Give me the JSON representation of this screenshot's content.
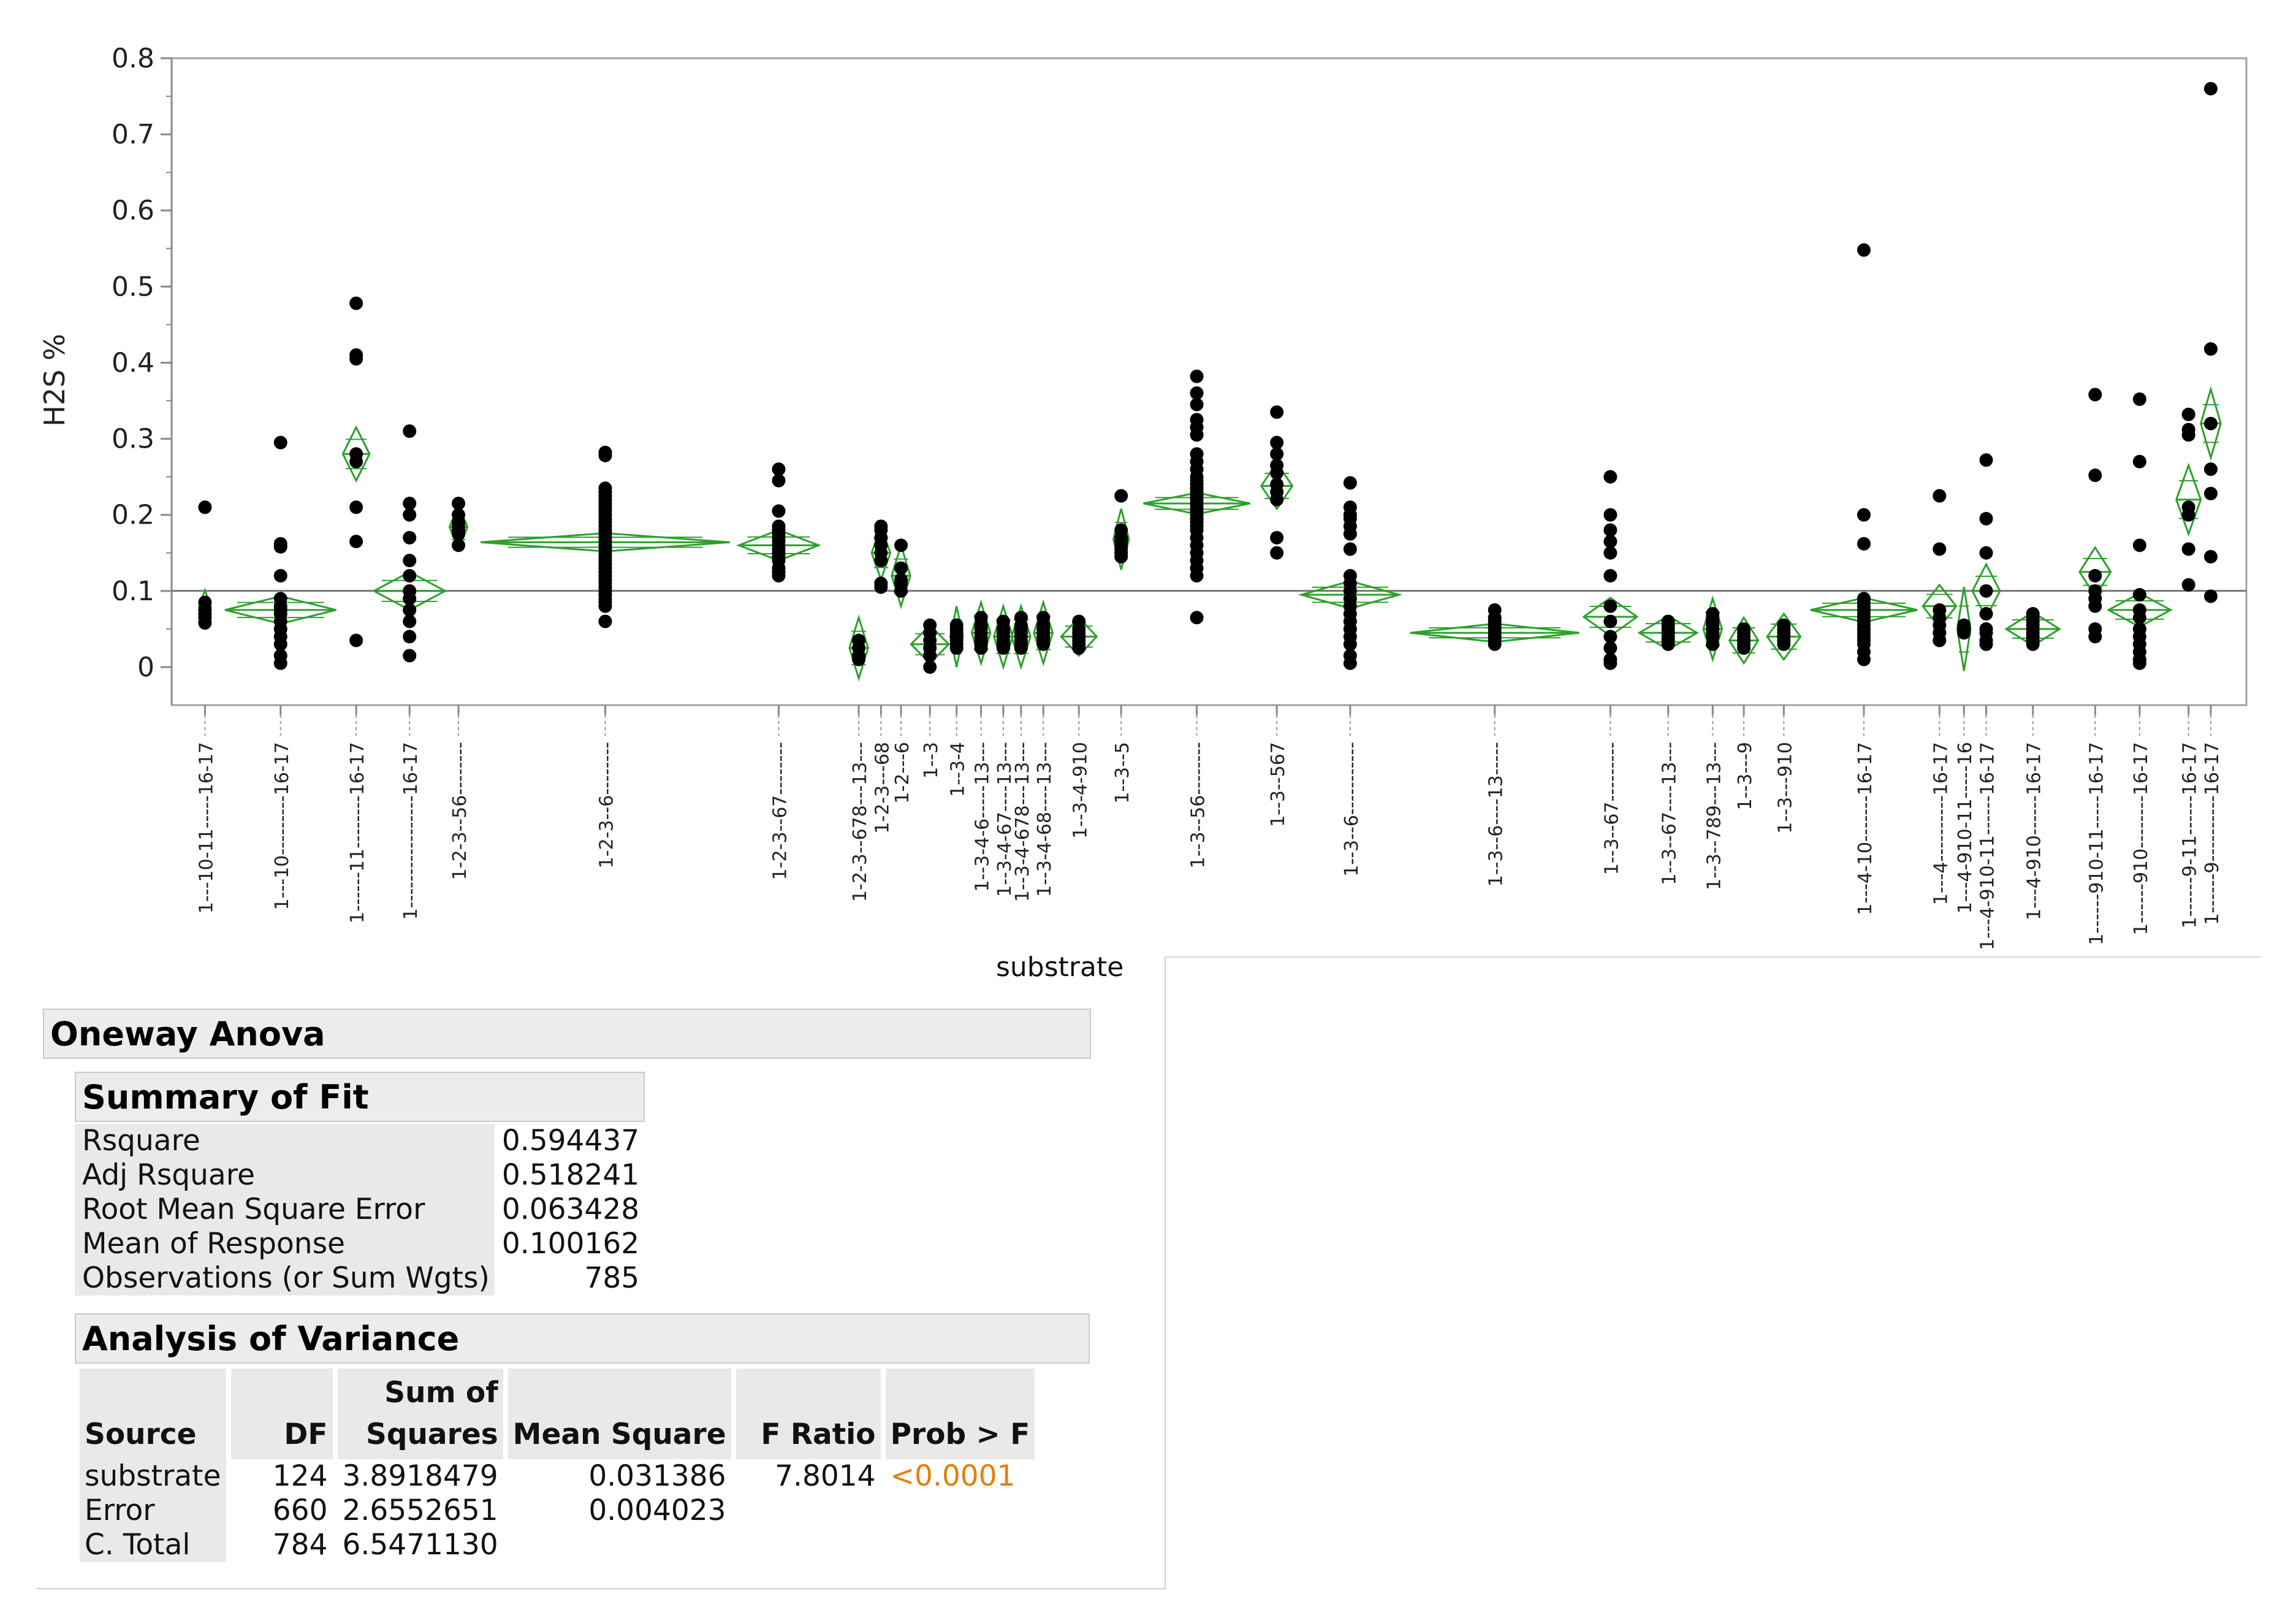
{
  "chart_data": {
    "type": "scatter",
    "subtype": "oneway-means-diamonds",
    "title": "",
    "xlabel": "substrate",
    "ylabel": "H2S %",
    "ylim": [
      -0.05,
      0.8
    ],
    "yticks": [
      0,
      0.1,
      0.2,
      0.3,
      0.4,
      0.5,
      0.6,
      0.7,
      0.8
    ],
    "ytick_labels": [
      "0",
      "0.1",
      "0.2",
      "0.3",
      "0.4",
      "0.5",
      "0.6",
      "0.7",
      "0.8"
    ],
    "grand_mean": 0.100162,
    "grid": false,
    "colors": {
      "diamond": "#2ca02c",
      "point": "#000000",
      "axis": "#888888",
      "grand_mean_line": "#777777"
    },
    "groups": [
      {
        "label": "1---10-11-----16-17",
        "xc": 0.0,
        "w": 0.04,
        "mean": 0.079,
        "hh": 0.022,
        "pts": [
          0.21,
          0.085,
          0.075,
          0.07,
          0.065,
          0.058
        ]
      },
      {
        "label": "1---10---------16-17",
        "xc": 1.7,
        "w": 2.5,
        "mean": 0.075,
        "hh": 0.018,
        "pts": [
          0.295,
          0.162,
          0.158,
          0.12,
          0.09,
          0.08,
          0.075,
          0.07,
          0.06,
          0.05,
          0.04,
          0.03,
          0.015,
          0.005
        ]
      },
      {
        "label": "1------11--------16-17",
        "xc": 3.4,
        "w": 0.6,
        "mean": 0.28,
        "hh": 0.035,
        "pts": [
          0.478,
          0.41,
          0.405,
          0.28,
          0.27,
          0.21,
          0.165,
          0.035
        ]
      },
      {
        "label": "1-----------------16-17",
        "xc": 4.6,
        "w": 1.6,
        "mean": 0.1,
        "hh": 0.025,
        "pts": [
          0.31,
          0.215,
          0.2,
          0.17,
          0.14,
          0.12,
          0.1,
          0.09,
          0.075,
          0.06,
          0.04,
          0.015
        ]
      },
      {
        "label": "1-2-3--56--------",
        "xc": 5.7,
        "w": 0.4,
        "mean": 0.184,
        "hh": 0.03,
        "pts": [
          0.215,
          0.2,
          0.19,
          0.185,
          0.18,
          0.175,
          0.16
        ]
      },
      {
        "label": "1-2-3--6--------",
        "xc": 9.0,
        "w": 5.6,
        "mean": 0.164,
        "hh": 0.012,
        "pts": [
          0.282,
          0.278,
          0.235,
          0.23,
          0.225,
          0.22,
          0.215,
          0.21,
          0.205,
          0.2,
          0.195,
          0.19,
          0.185,
          0.18,
          0.175,
          0.17,
          0.165,
          0.16,
          0.155,
          0.15,
          0.145,
          0.14,
          0.135,
          0.13,
          0.125,
          0.12,
          0.115,
          0.11,
          0.105,
          0.1,
          0.095,
          0.09,
          0.085,
          0.08,
          0.06
        ]
      },
      {
        "label": "1-2-3--67--------",
        "xc": 12.9,
        "w": 1.8,
        "mean": 0.16,
        "hh": 0.02,
        "pts": [
          0.26,
          0.245,
          0.205,
          0.185,
          0.18,
          0.175,
          0.17,
          0.165,
          0.16,
          0.155,
          0.15,
          0.145,
          0.14,
          0.13,
          0.125,
          0.12
        ]
      },
      {
        "label": "1-2-3--678---13---",
        "xc": 14.7,
        "w": 0.42,
        "mean": 0.025,
        "hh": 0.04,
        "pts": [
          0.035,
          0.025,
          0.015,
          0.01
        ]
      },
      {
        "label": "1-2-3---68",
        "xc": 15.2,
        "w": 0.42,
        "mean": 0.15,
        "hh": 0.035,
        "pts": [
          0.185,
          0.18,
          0.17,
          0.16,
          0.15,
          0.14,
          0.11,
          0.105
        ]
      },
      {
        "label": "1-2---6",
        "xc": 15.65,
        "w": 0.42,
        "mean": 0.12,
        "hh": 0.04,
        "pts": [
          0.16,
          0.13,
          0.115,
          0.11,
          0.1
        ]
      },
      {
        "label": "1--3",
        "xc": 16.3,
        "w": 0.85,
        "mean": 0.03,
        "hh": 0.025,
        "pts": [
          0.055,
          0.045,
          0.035,
          0.025,
          0.015,
          0.0
        ]
      },
      {
        "label": "1--3-4",
        "xc": 16.9,
        "w": 0.28,
        "mean": 0.04,
        "hh": 0.04,
        "pts": [
          0.055,
          0.05,
          0.045,
          0.04,
          0.035,
          0.03,
          0.025
        ]
      },
      {
        "label": "1--3-4-6-----13---",
        "xc": 17.45,
        "w": 0.42,
        "mean": 0.045,
        "hh": 0.04,
        "pts": [
          0.065,
          0.055,
          0.05,
          0.045,
          0.04,
          0.035,
          0.03,
          0.025
        ]
      },
      {
        "label": "1--3-4-67----13---",
        "xc": 17.95,
        "w": 0.42,
        "mean": 0.04,
        "hh": 0.04,
        "pts": [
          0.06,
          0.05,
          0.045,
          0.04,
          0.035,
          0.03,
          0.025
        ]
      },
      {
        "label": "1--3-4-678---13---",
        "xc": 18.35,
        "w": 0.42,
        "mean": 0.04,
        "hh": 0.04,
        "pts": [
          0.065,
          0.055,
          0.05,
          0.045,
          0.04,
          0.035,
          0.03,
          0.025
        ]
      },
      {
        "label": "1--3-4-68----13---",
        "xc": 18.85,
        "w": 0.42,
        "mean": 0.045,
        "hh": 0.04,
        "pts": [
          0.065,
          0.055,
          0.05,
          0.045,
          0.04,
          0.035,
          0.03
        ]
      },
      {
        "label": "1--3-4-910",
        "xc": 19.65,
        "w": 0.8,
        "mean": 0.04,
        "hh": 0.025,
        "pts": [
          0.06,
          0.05,
          0.045,
          0.04,
          0.035,
          0.03,
          0.025
        ]
      },
      {
        "label": "1--3--5",
        "xc": 20.6,
        "w": 0.35,
        "mean": 0.168,
        "hh": 0.04,
        "pts": [
          0.225,
          0.18,
          0.17,
          0.165,
          0.16,
          0.155,
          0.15,
          0.145
        ]
      },
      {
        "label": "1--3--56--------",
        "xc": 22.3,
        "w": 2.4,
        "mean": 0.215,
        "hh": 0.014,
        "pts": [
          0.382,
          0.36,
          0.345,
          0.325,
          0.315,
          0.305,
          0.28,
          0.27,
          0.26,
          0.25,
          0.245,
          0.24,
          0.235,
          0.23,
          0.225,
          0.22,
          0.215,
          0.21,
          0.205,
          0.2,
          0.195,
          0.19,
          0.185,
          0.18,
          0.17,
          0.16,
          0.15,
          0.14,
          0.13,
          0.12,
          0.065
        ]
      },
      {
        "label": "1--3--567",
        "xc": 24.1,
        "w": 0.7,
        "mean": 0.238,
        "hh": 0.03,
        "pts": [
          0.335,
          0.295,
          0.28,
          0.265,
          0.255,
          0.24,
          0.23,
          0.22,
          0.17,
          0.15
        ]
      },
      {
        "label": "1--3--6-----------",
        "xc": 25.75,
        "w": 2.2,
        "mean": 0.095,
        "hh": 0.018,
        "pts": [
          0.242,
          0.21,
          0.2,
          0.195,
          0.185,
          0.175,
          0.155,
          0.12,
          0.11,
          0.1,
          0.09,
          0.08,
          0.07,
          0.06,
          0.05,
          0.04,
          0.03,
          0.015,
          0.005
        ]
      },
      {
        "label": "1--3--6----13-----",
        "xc": 29.0,
        "w": 3.8,
        "mean": 0.045,
        "hh": 0.012,
        "pts": [
          0.075,
          0.065,
          0.06,
          0.055,
          0.05,
          0.045,
          0.04,
          0.035,
          0.03
        ]
      },
      {
        "label": "1--3--67---------",
        "xc": 31.6,
        "w": 1.2,
        "mean": 0.066,
        "hh": 0.025,
        "pts": [
          0.25,
          0.2,
          0.18,
          0.165,
          0.15,
          0.12,
          0.08,
          0.06,
          0.04,
          0.025,
          0.01,
          0.005
        ]
      },
      {
        "label": "1--3--67----13---",
        "xc": 32.9,
        "w": 1.3,
        "mean": 0.045,
        "hh": 0.022,
        "pts": [
          0.06,
          0.055,
          0.05,
          0.045,
          0.04,
          0.035,
          0.03
        ]
      },
      {
        "label": "1--3--789---13---",
        "xc": 33.9,
        "w": 0.42,
        "mean": 0.05,
        "hh": 0.04,
        "pts": [
          0.07,
          0.065,
          0.06,
          0.055,
          0.05,
          0.045,
          0.04,
          0.03
        ]
      },
      {
        "label": "1--3---9",
        "xc": 34.6,
        "w": 0.65,
        "mean": 0.035,
        "hh": 0.03,
        "pts": [
          0.05,
          0.045,
          0.04,
          0.035,
          0.03,
          0.025
        ]
      },
      {
        "label": "1--3---910",
        "xc": 35.5,
        "w": 0.75,
        "mean": 0.04,
        "hh": 0.03,
        "pts": [
          0.055,
          0.05,
          0.045,
          0.04,
          0.035,
          0.03
        ]
      },
      {
        "label": "1---4-10-------16-17",
        "xc": 37.3,
        "w": 2.4,
        "mean": 0.075,
        "hh": 0.016,
        "pts": [
          0.548,
          0.2,
          0.162,
          0.09,
          0.085,
          0.08,
          0.075,
          0.07,
          0.065,
          0.06,
          0.055,
          0.05,
          0.045,
          0.04,
          0.035,
          0.03,
          0.02,
          0.01
        ]
      },
      {
        "label": "1---4----------16-17",
        "xc": 39.0,
        "w": 0.75,
        "mean": 0.08,
        "hh": 0.028,
        "pts": [
          0.225,
          0.155,
          0.075,
          0.065,
          0.055,
          0.045,
          0.035
        ]
      },
      {
        "label": "1---4-910-11-----16",
        "xc": 39.55,
        "w": 0.3,
        "mean": 0.05,
        "hh": 0.055,
        "pts": [
          0.055,
          0.05,
          0.045
        ]
      },
      {
        "label": "1---4-910-11------16-17",
        "xc": 40.05,
        "w": 0.62,
        "mean": 0.1,
        "hh": 0.035,
        "pts": [
          0.272,
          0.195,
          0.15,
          0.1,
          0.07,
          0.05,
          0.045,
          0.035,
          0.03
        ]
      },
      {
        "label": "1---4-910------16-17",
        "xc": 41.1,
        "w": 1.2,
        "mean": 0.05,
        "hh": 0.022,
        "pts": [
          0.07,
          0.065,
          0.06,
          0.055,
          0.05,
          0.045,
          0.04,
          0.035,
          0.03
        ]
      },
      {
        "label": "1------910-11-----16-17",
        "xc": 42.5,
        "w": 0.7,
        "mean": 0.125,
        "hh": 0.032,
        "pts": [
          0.358,
          0.252,
          0.12,
          0.1,
          0.09,
          0.08,
          0.05,
          0.04
        ]
      },
      {
        "label": "1------910--------16-17",
        "xc": 43.5,
        "w": 1.4,
        "mean": 0.075,
        "hh": 0.022,
        "pts": [
          0.352,
          0.27,
          0.16,
          0.095,
          0.075,
          0.065,
          0.05,
          0.04,
          0.03,
          0.02,
          0.01,
          0.005
        ]
      },
      {
        "label": "1------9-11------16-17",
        "xc": 44.6,
        "w": 0.55,
        "mean": 0.22,
        "hh": 0.045,
        "pts": [
          0.332,
          0.312,
          0.305,
          0.21,
          0.2,
          0.155,
          0.108
        ]
      },
      {
        "label": "1------9----------16-17",
        "xc": 45.1,
        "w": 0.45,
        "mean": 0.32,
        "hh": 0.045,
        "pts": [
          0.76,
          0.418,
          0.32,
          0.26,
          0.228,
          0.145,
          0.093
        ]
      }
    ]
  },
  "report": {
    "oneway_title": "Oneway Anova",
    "summary_title": "Summary of Fit",
    "summary_rows": [
      {
        "label": "Rsquare",
        "value": "0.594437"
      },
      {
        "label": "Adj Rsquare",
        "value": "0.518241"
      },
      {
        "label": "Root Mean Square Error",
        "value": "0.063428"
      },
      {
        "label": "Mean of Response",
        "value": "0.100162"
      },
      {
        "label": "Observations (or Sum Wgts)",
        "value": "785"
      }
    ],
    "anova_title": "Analysis of Variance",
    "anova_headers": {
      "source": "Source",
      "df": "DF",
      "ss_line1": "Sum of",
      "ss_line2": "Squares",
      "ms": "Mean Square",
      "f": "F Ratio",
      "p": "Prob > F"
    },
    "anova_rows": [
      {
        "source": "substrate",
        "df": "124",
        "ss": "3.8918479",
        "ms": "0.031386",
        "f": "7.8014",
        "p": "<0.0001"
      },
      {
        "source": "Error",
        "df": "660",
        "ss": "2.6552651",
        "ms": "0.004023",
        "f": "",
        "p": ""
      },
      {
        "source": "C. Total",
        "df": "784",
        "ss": "6.5471130",
        "ms": "",
        "f": "",
        "p": ""
      }
    ]
  }
}
